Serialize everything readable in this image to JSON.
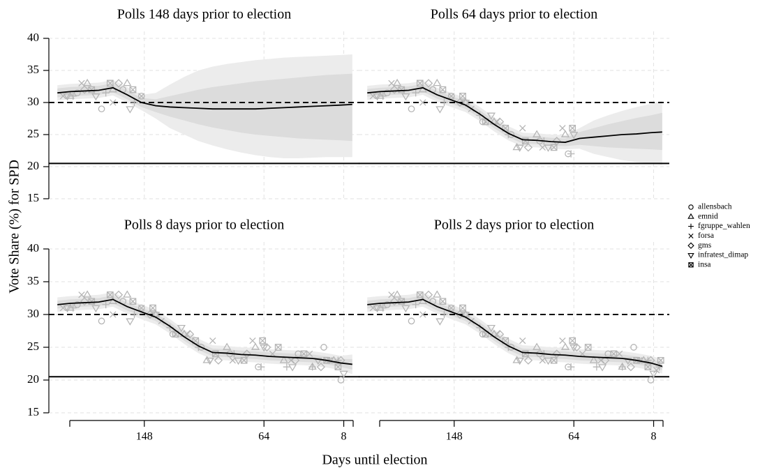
{
  "chart_data": {
    "type": "small-multiples",
    "ylabel": "Vote Share (%) for SPD",
    "xlabel": "Days until election",
    "ylim": [
      15,
      40
    ],
    "yticks": [
      15,
      20,
      25,
      30,
      35,
      40
    ],
    "xlim": [
      215,
      -3
    ],
    "xticks": [
      148,
      64,
      8
    ],
    "grid": true,
    "hlines": [
      {
        "value": 30,
        "style": "dashed"
      },
      {
        "value": 20.5,
        "style": "solid"
      }
    ],
    "poll_color": "#b5b5b5",
    "line_color": "#000000",
    "band_colors": [
      "#ececec",
      "#dcdcdc"
    ],
    "series": [
      {
        "name": "allensbach",
        "marker": "circle",
        "x": [
          195,
          178,
          163,
          150,
          128,
          108,
          88,
          68,
          40,
          22,
          10
        ],
        "values": [
          31.5,
          29,
          32,
          31,
          27,
          25,
          24,
          22,
          24,
          25,
          20
        ]
      },
      {
        "name": "emnid",
        "marker": "triangle",
        "x": [
          200,
          188,
          170,
          160,
          140,
          120,
          104,
          90,
          70,
          50,
          30,
          15
        ],
        "values": [
          31,
          33,
          32,
          33,
          30,
          27,
          23,
          25,
          25,
          23,
          22,
          23
        ]
      },
      {
        "name": "fgruppe_wahlen",
        "marker": "plus",
        "x": [
          198,
          175,
          155,
          130,
          110,
          85,
          66,
          48,
          30,
          12,
          4
        ],
        "values": [
          31,
          31.5,
          30,
          28,
          25,
          24,
          22,
          22,
          22,
          23,
          22
        ]
      },
      {
        "name": "forsa",
        "marker": "cross",
        "x": [
          205,
          192,
          170,
          150,
          136,
          118,
          100,
          86,
          72,
          58,
          45,
          32,
          18,
          6
        ],
        "values": [
          31,
          33,
          30,
          31,
          29,
          27,
          26,
          23,
          26,
          24,
          23,
          24,
          23,
          21.5
        ]
      },
      {
        "name": "gms",
        "marker": "diamond",
        "x": [
          190,
          166,
          144,
          116,
          96,
          76,
          62,
          42,
          24,
          10
        ],
        "values": [
          32,
          33,
          30,
          27,
          23,
          24,
          25,
          23,
          22,
          23
        ]
      },
      {
        "name": "infratest_dimap",
        "marker": "down-triangle",
        "x": [
          202,
          182,
          158,
          140,
          122,
          102,
          82,
          64,
          44,
          26,
          8
        ],
        "values": [
          31,
          31,
          29,
          30,
          28,
          23,
          23,
          25,
          22,
          23,
          21
        ]
      },
      {
        "name": "insa",
        "marker": "boxed-cross",
        "x": [
          185,
          172,
          156,
          142,
          126,
          112,
          98,
          78,
          65,
          54,
          36,
          20,
          12,
          3
        ],
        "values": [
          32,
          33,
          32,
          31,
          27,
          26,
          24,
          23,
          26,
          25,
          24,
          23,
          22,
          23
        ]
      }
    ],
    "panels": [
      {
        "title": "Polls 148 days prior to election",
        "cutoff": 148,
        "x": [
          209,
          200,
          190,
          180,
          170,
          160,
          150,
          140,
          130,
          120,
          110,
          100,
          90,
          80,
          70,
          60,
          50,
          40,
          30,
          20,
          10,
          2
        ],
        "estimate": [
          31.5,
          31.7,
          31.8,
          31.9,
          32.3,
          31.2,
          30.0,
          29.5,
          29.3,
          29.2,
          29.1,
          29.0,
          29.0,
          29.0,
          29.0,
          29.1,
          29.2,
          29.3,
          29.4,
          29.5,
          29.6,
          29.7
        ],
        "inner_lower": [
          30.8,
          31.0,
          31.1,
          31.2,
          31.6,
          30.5,
          29.3,
          28.5,
          27.8,
          27.2,
          26.6,
          26.1,
          25.7,
          25.3,
          25.0,
          24.8,
          24.6,
          24.4,
          24.3,
          24.2,
          24.1,
          24.0
        ],
        "inner_upper": [
          32.2,
          32.4,
          32.5,
          32.6,
          33.0,
          31.9,
          30.7,
          30.5,
          31.0,
          31.5,
          32.0,
          32.4,
          32.7,
          33.0,
          33.3,
          33.5,
          33.7,
          33.9,
          34.1,
          34.3,
          34.4,
          34.5
        ],
        "outer_lower": [
          30.3,
          30.5,
          30.6,
          30.7,
          31.1,
          30.0,
          28.8,
          27.5,
          26.0,
          25.0,
          24.0,
          23.3,
          22.7,
          22.2,
          21.8,
          21.5,
          21.3,
          21.3,
          21.4,
          21.5,
          21.5,
          21.5
        ],
        "outer_upper": [
          32.7,
          32.9,
          33.0,
          33.1,
          33.5,
          32.4,
          31.2,
          31.5,
          32.8,
          34.0,
          35.0,
          35.6,
          36.0,
          36.3,
          36.6,
          36.8,
          37.0,
          37.1,
          37.2,
          37.3,
          37.4,
          37.5
        ]
      },
      {
        "title": "Polls 64 days prior to election",
        "cutoff": 64,
        "x": [
          209,
          200,
          190,
          180,
          170,
          160,
          150,
          140,
          130,
          120,
          110,
          100,
          90,
          80,
          70,
          60,
          50,
          40,
          30,
          20,
          10,
          2
        ],
        "estimate": [
          31.5,
          31.7,
          31.8,
          31.9,
          32.3,
          31.2,
          30.4,
          29.6,
          28.2,
          26.6,
          25.2,
          24.2,
          24.1,
          23.9,
          23.8,
          24.4,
          24.6,
          24.8,
          25.0,
          25.1,
          25.3,
          25.4
        ],
        "inner_lower": [
          30.9,
          31.1,
          31.2,
          31.3,
          31.7,
          30.6,
          29.8,
          29.0,
          27.6,
          26.0,
          24.6,
          23.6,
          23.5,
          23.3,
          23.2,
          23.4,
          23.2,
          23.0,
          22.9,
          22.8,
          22.7,
          22.6
        ],
        "inner_upper": [
          32.1,
          32.3,
          32.4,
          32.5,
          32.9,
          31.8,
          31.0,
          30.2,
          28.8,
          27.2,
          25.8,
          24.8,
          24.7,
          24.5,
          24.4,
          25.4,
          26.0,
          26.6,
          27.1,
          27.6,
          28.0,
          28.4
        ],
        "outer_lower": [
          30.4,
          30.6,
          30.7,
          30.8,
          31.2,
          30.1,
          29.3,
          28.5,
          27.1,
          25.5,
          24.1,
          23.1,
          23.0,
          22.8,
          22.7,
          22.8,
          22.0,
          21.5,
          21.0,
          20.7,
          20.5,
          20.3
        ],
        "outer_upper": [
          32.6,
          32.8,
          32.9,
          33.0,
          33.4,
          32.3,
          31.5,
          30.7,
          29.3,
          27.7,
          26.3,
          25.3,
          25.2,
          25.0,
          24.9,
          26.0,
          27.2,
          28.0,
          28.7,
          29.3,
          29.8,
          30.3
        ]
      },
      {
        "title": "Polls 8 days prior to election",
        "cutoff": 8,
        "x": [
          209,
          200,
          190,
          180,
          170,
          160,
          150,
          140,
          130,
          120,
          110,
          100,
          90,
          80,
          70,
          60,
          50,
          40,
          30,
          20,
          10,
          2
        ],
        "estimate": [
          31.5,
          31.7,
          31.8,
          31.9,
          32.3,
          31.2,
          30.4,
          29.6,
          28.2,
          26.6,
          25.2,
          24.2,
          24.1,
          23.9,
          23.8,
          23.6,
          23.5,
          23.4,
          23.3,
          23.0,
          22.6,
          22.4
        ],
        "inner_lower": [
          30.9,
          31.1,
          31.2,
          31.3,
          31.7,
          30.6,
          29.8,
          29.0,
          27.6,
          26.0,
          24.6,
          23.6,
          23.5,
          23.3,
          23.2,
          23.0,
          22.9,
          22.8,
          22.7,
          22.4,
          22.0,
          21.6
        ],
        "inner_upper": [
          32.1,
          32.3,
          32.4,
          32.5,
          32.9,
          31.8,
          31.0,
          30.2,
          28.8,
          27.2,
          25.8,
          24.8,
          24.7,
          24.5,
          24.4,
          24.2,
          24.1,
          24.0,
          23.9,
          23.6,
          23.2,
          23.2
        ],
        "outer_lower": [
          30.4,
          30.6,
          30.7,
          30.8,
          31.2,
          30.1,
          29.3,
          28.5,
          27.1,
          25.5,
          24.1,
          23.1,
          23.0,
          22.8,
          22.7,
          22.5,
          22.4,
          22.3,
          22.2,
          21.9,
          21.5,
          20.9
        ],
        "outer_upper": [
          32.6,
          32.8,
          32.9,
          33.0,
          33.4,
          32.3,
          31.5,
          30.7,
          29.3,
          27.7,
          26.3,
          25.3,
          25.2,
          25.0,
          24.9,
          24.7,
          24.6,
          24.5,
          24.4,
          24.1,
          23.7,
          23.9
        ]
      },
      {
        "title": "Polls 2 days prior to election",
        "cutoff": 2,
        "x": [
          209,
          200,
          190,
          180,
          170,
          160,
          150,
          140,
          130,
          120,
          110,
          100,
          90,
          80,
          70,
          60,
          50,
          40,
          30,
          20,
          10,
          2
        ],
        "estimate": [
          31.5,
          31.7,
          31.8,
          31.9,
          32.3,
          31.2,
          30.4,
          29.6,
          28.2,
          26.6,
          25.2,
          24.2,
          24.1,
          23.9,
          23.8,
          23.6,
          23.5,
          23.4,
          23.3,
          23.0,
          22.6,
          22.1
        ],
        "inner_lower": [
          30.9,
          31.1,
          31.2,
          31.3,
          31.7,
          30.6,
          29.8,
          29.0,
          27.6,
          26.0,
          24.6,
          23.6,
          23.5,
          23.3,
          23.2,
          23.0,
          22.9,
          22.8,
          22.7,
          22.4,
          22.0,
          21.5
        ],
        "inner_upper": [
          32.1,
          32.3,
          32.4,
          32.5,
          32.9,
          31.8,
          31.0,
          30.2,
          28.8,
          27.2,
          25.8,
          24.8,
          24.7,
          24.5,
          24.4,
          24.2,
          24.1,
          24.0,
          23.9,
          23.6,
          23.2,
          22.7
        ],
        "outer_lower": [
          30.4,
          30.6,
          30.7,
          30.8,
          31.2,
          30.1,
          29.3,
          28.5,
          27.1,
          25.5,
          24.1,
          23.1,
          23.0,
          22.8,
          22.7,
          22.5,
          22.4,
          22.3,
          22.2,
          21.9,
          21.5,
          21.0
        ],
        "outer_upper": [
          32.6,
          32.8,
          32.9,
          33.0,
          33.4,
          32.3,
          31.5,
          30.7,
          29.3,
          27.7,
          26.3,
          25.3,
          25.2,
          25.0,
          24.9,
          24.7,
          24.6,
          24.5,
          24.4,
          24.1,
          23.7,
          23.2
        ]
      }
    ]
  }
}
